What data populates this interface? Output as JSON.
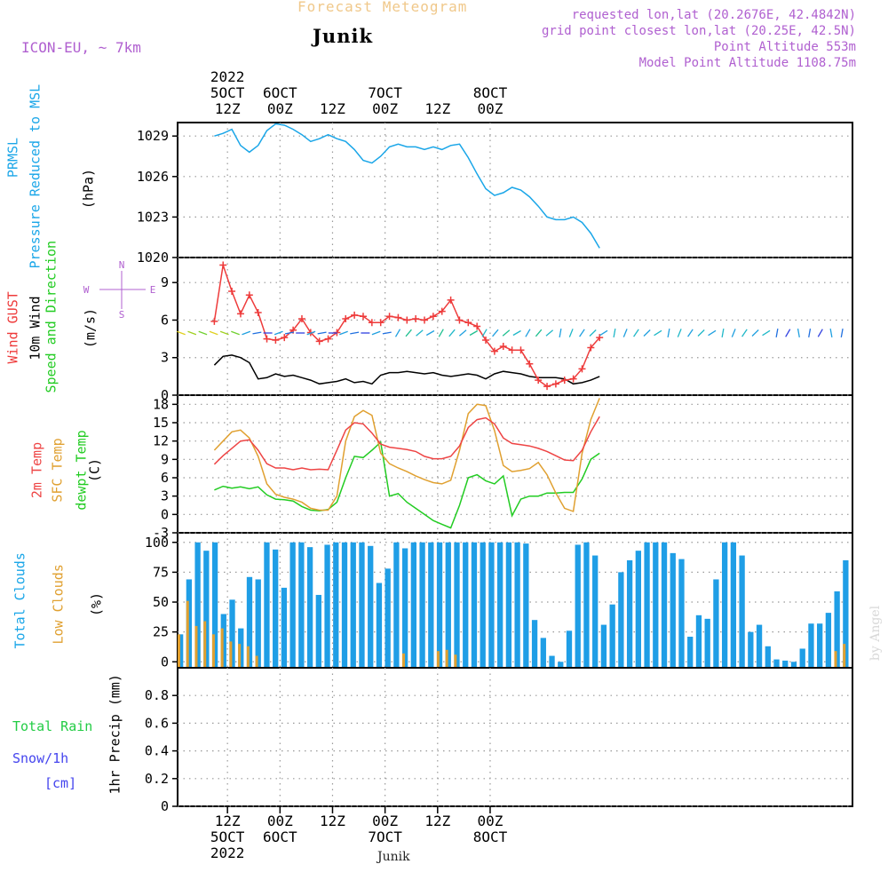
{
  "header": {
    "title": "Forecast Meteogram",
    "station": "Junik",
    "model": "ICON-EU, ~ 7km",
    "requested": "requested lon,lat (20.2676E, 42.4842N)",
    "grid_point": "grid point closest lon,lat (20.25E, 42.5N)",
    "point_altitude": "Point Altitude 553m",
    "model_altitude": "Model Point Altitude 1108.75m"
  },
  "footer_station": "Junik",
  "watermark": "by Angel",
  "colors": {
    "pressure": "#1aa6e8",
    "gust": "#ee3b3b",
    "wind": "#000000",
    "temp": "#ee4444",
    "sfc_temp": "#e0a030",
    "dewpt": "#22cc22",
    "total_clouds": "#1f9ee6",
    "low_clouds": "#e0a030",
    "label_purple": "#b060d0",
    "rain": "#22cc44",
    "snow": "#4444ee"
  },
  "time_axis": {
    "top_labels": [
      {
        "year": "2022",
        "day": "5OCT",
        "hour": "12Z"
      },
      {
        "day": "6OCT",
        "hour": "00Z"
      },
      {
        "hour": "12Z"
      },
      {
        "day": "7OCT",
        "hour": "00Z"
      },
      {
        "hour": "12Z"
      },
      {
        "day": "8OCT",
        "hour": "00Z"
      }
    ],
    "bottom_labels": [
      {
        "hour": "12Z",
        "day": "5OCT",
        "year": "2022"
      },
      {
        "hour": "00Z",
        "day": "6OCT"
      },
      {
        "hour": "12Z"
      },
      {
        "hour": "00Z",
        "day": "7OCT"
      },
      {
        "hour": "12Z"
      },
      {
        "hour": "00Z",
        "day": "8OCT"
      }
    ]
  },
  "panel_labels": {
    "pressure": {
      "line1": "PRMSL",
      "line2": "Pressure Reduced to MSL",
      "unit": "(hPa)"
    },
    "wind": {
      "gust": "Wind GUST",
      "wind10": "10m Wind",
      "speed_dir": "Speed and Direction",
      "unit": "(m/s)"
    },
    "compass": {
      "n": "N",
      "s": "S",
      "w": "W",
      "e": "E"
    },
    "temp": {
      "t2m": "2m Temp",
      "sfc": "SFC Temp",
      "dew": "dewpt Temp",
      "unit": "(C)"
    },
    "clouds": {
      "total": "Total Clouds",
      "low": "Low Clouds",
      "unit": "(%)"
    },
    "precip": {
      "total_rain": "Total  Rain",
      "snow": "Snow/1h",
      "cm": "[cm]",
      "unit": "1hr Precip (mm)"
    }
  },
  "chart_data": [
    {
      "type": "line",
      "title": "PRMSL Pressure Reduced to MSL",
      "ylabel": "(hPa)",
      "ylim": [
        1020,
        1030
      ],
      "yticks": [
        "1029",
        "1026",
        "1023",
        "1020"
      ],
      "ytick_values": [
        1029,
        1026,
        1023,
        1020
      ],
      "x_hours_start": 9,
      "x_step_hours": 2,
      "series": [
        {
          "name": "PRMSL",
          "values": [
            1029.0,
            1029.2,
            1029.5,
            1028.3,
            1027.8,
            1028.3,
            1029.4,
            1029.9,
            1029.8,
            1029.5,
            1029.1,
            1028.6,
            1028.8,
            1029.1,
            1028.8,
            1028.6,
            1028.0,
            1027.2,
            1027.0,
            1027.5,
            1028.2,
            1028.4,
            1028.2,
            1028.2,
            1028.0,
            1028.2,
            1028.0,
            1028.3,
            1028.4,
            1027.4,
            1026.2,
            1025.1,
            1024.6,
            1024.8,
            1025.2,
            1025.0,
            1024.5,
            1023.8,
            1023.0,
            1022.8,
            1022.8,
            1023.0,
            1022.6,
            1021.8,
            1020.7
          ]
        }
      ]
    },
    {
      "type": "line",
      "title": "Wind GUST / 10m Wind Speed and Direction",
      "ylabel": "(m/s)",
      "ylim": [
        0,
        11
      ],
      "yticks": [
        "9",
        "6",
        "3",
        "0"
      ],
      "ytick_values": [
        9,
        6,
        3,
        0
      ],
      "x_hours_start": 9,
      "x_step_hours": 2,
      "series": [
        {
          "name": "Wind GUST",
          "values": [
            5.9,
            10.4,
            8.3,
            6.5,
            8.0,
            6.6,
            4.5,
            4.4,
            4.6,
            5.2,
            6.1,
            5.0,
            4.3,
            4.5,
            5.0,
            6.1,
            6.4,
            6.3,
            5.8,
            5.8,
            6.3,
            6.2,
            6.0,
            6.1,
            6.0,
            6.3,
            6.7,
            7.6,
            6.0,
            5.8,
            5.5,
            4.4,
            3.5,
            3.9,
            3.6,
            3.6,
            2.5,
            1.2,
            0.7,
            0.9,
            1.2,
            1.3,
            2.1,
            3.8,
            4.6
          ]
        },
        {
          "name": "10m Wind",
          "values": [
            2.4,
            3.1,
            3.2,
            3.0,
            2.6,
            1.3,
            1.4,
            1.7,
            1.5,
            1.6,
            1.4,
            1.2,
            0.9,
            1.0,
            1.1,
            1.3,
            1.0,
            1.1,
            0.9,
            1.6,
            1.8,
            1.8,
            1.9,
            1.8,
            1.7,
            1.8,
            1.6,
            1.5,
            1.6,
            1.7,
            1.6,
            1.3,
            1.7,
            1.9,
            1.8,
            1.7,
            1.5,
            1.4,
            1.4,
            1.4,
            1.3,
            0.9,
            1.0,
            1.2,
            1.5
          ]
        }
      ]
    },
    {
      "type": "line",
      "title": "2m Temp / SFC Temp / dewpt Temp",
      "ylabel": "(C)",
      "ylim": [
        -3,
        19.5
      ],
      "yticks": [
        "18",
        "15",
        "12",
        "9",
        "6",
        "3",
        "0",
        "-3"
      ],
      "ytick_values": [
        18,
        15,
        12,
        9,
        6,
        3,
        0,
        -3
      ],
      "x_hours_start": 9,
      "x_step_hours": 2,
      "series": [
        {
          "name": "2m Temp",
          "values": [
            8.2,
            9.6,
            10.8,
            12.0,
            12.2,
            10.5,
            8.3,
            7.6,
            7.6,
            7.3,
            7.6,
            7.3,
            7.4,
            7.3,
            10.5,
            13.8,
            15.0,
            14.8,
            13.3,
            11.5,
            11.0,
            10.8,
            10.6,
            10.3,
            9.5,
            9.1,
            9.1,
            9.5,
            11.2,
            14.2,
            15.5,
            15.8,
            14.8,
            12.5,
            11.6,
            11.4,
            11.2,
            10.8,
            10.3,
            9.6,
            8.9,
            8.8,
            10.5,
            13.5,
            16.0
          ]
        },
        {
          "name": "SFC Temp",
          "values": [
            10.5,
            12.0,
            13.5,
            13.8,
            12.5,
            9.5,
            5.0,
            3.3,
            2.8,
            2.5,
            2.0,
            1.0,
            0.7,
            0.7,
            3.0,
            12.0,
            16.0,
            17.0,
            16.2,
            10.0,
            8.3,
            7.6,
            7.0,
            6.3,
            5.7,
            5.2,
            5.0,
            5.6,
            10.5,
            16.5,
            18.0,
            17.8,
            13.7,
            8.0,
            7.0,
            7.2,
            7.5,
            8.5,
            6.5,
            3.5,
            1.0,
            0.5,
            10.0,
            15.5,
            19.0
          ]
        },
        {
          "name": "dewpt Temp",
          "values": [
            4.0,
            4.6,
            4.3,
            4.5,
            4.2,
            4.5,
            3.2,
            2.5,
            2.4,
            2.2,
            1.3,
            0.7,
            0.6,
            0.8,
            2.0,
            6.0,
            9.5,
            9.3,
            10.5,
            11.8,
            3.0,
            3.4,
            2.0,
            1.0,
            0.0,
            -1.0,
            -1.6,
            -2.2,
            1.5,
            6.0,
            6.5,
            5.5,
            5.0,
            6.3,
            -0.2,
            2.5,
            3.0,
            3.0,
            3.5,
            3.5,
            3.6,
            3.6,
            5.8,
            9.0,
            10.0
          ]
        }
      ]
    },
    {
      "type": "bar",
      "title": "Total Clouds / Low Clouds",
      "ylabel": "(%)",
      "ylim": [
        -5,
        108
      ],
      "yticks": [
        "100",
        "75",
        "50",
        "25",
        "0"
      ],
      "ytick_values": [
        100,
        75,
        50,
        25,
        0
      ],
      "x_hours_start": 8,
      "x_step_hours": 1,
      "series": [
        {
          "name": "Total Clouds",
          "values": [
            23,
            69,
            100,
            93,
            100,
            40,
            52,
            28,
            71,
            69,
            100,
            94,
            62,
            100,
            100,
            96,
            56,
            98,
            100,
            100,
            100,
            100,
            97,
            66,
            78,
            100,
            95,
            100,
            100,
            100,
            100,
            100,
            100,
            100,
            100,
            100,
            100,
            100,
            100,
            100,
            99,
            35,
            20,
            5,
            0,
            26,
            98,
            100,
            89,
            31,
            48,
            75,
            85,
            93,
            100,
            100,
            100,
            91,
            86,
            21,
            39,
            36,
            69,
            100,
            100,
            89,
            25,
            31,
            13,
            2,
            1,
            0,
            11,
            32,
            32,
            41,
            59,
            85
          ]
        },
        {
          "name": "Low Clouds",
          "values": [
            23,
            51,
            30,
            34,
            23,
            28,
            17,
            15,
            13,
            5,
            0,
            0,
            0,
            0,
            0,
            0,
            0,
            0,
            0,
            0,
            0,
            0,
            0,
            0,
            0,
            0,
            7,
            0,
            0,
            0,
            9,
            10,
            6,
            0,
            0,
            0,
            0,
            0,
            0,
            0,
            0,
            0,
            0,
            0,
            0,
            0,
            0,
            0,
            0,
            0,
            0,
            0,
            0,
            0,
            0,
            0,
            0,
            0,
            0,
            0,
            0,
            0,
            0,
            0,
            0,
            0,
            0,
            0,
            0,
            0,
            0,
            0,
            0,
            0,
            0,
            0,
            9,
            15
          ]
        }
      ]
    },
    {
      "type": "bar",
      "title": "1hr Precip",
      "ylabel": "1hr Precip (mm)",
      "ylim": [
        0,
        1
      ],
      "yticks": [
        "0.8",
        "0.6",
        "0.4",
        "0.2",
        "0"
      ],
      "ytick_values": [
        0.8,
        0.6,
        0.4,
        0.2,
        0
      ],
      "series": [
        {
          "name": "Total Rain",
          "values": []
        },
        {
          "name": "Snow/1h",
          "values": []
        }
      ]
    }
  ]
}
